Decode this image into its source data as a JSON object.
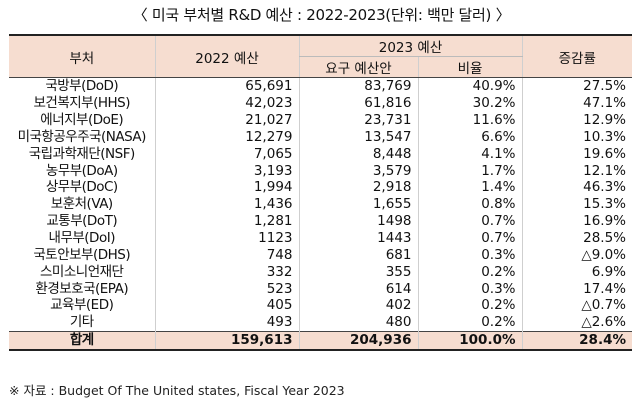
{
  "title": "〈 미국 부처별 R&D 예산 : 2022-2023(단위: 백만 달러) 〉",
  "headers": {
    "dept": "부처",
    "fy2022": "2022 예산",
    "fy2023": "2023 예산",
    "requested": "요구 예산안",
    "ratio": "비율",
    "growth": "증감률"
  },
  "rows": [
    {
      "dept": "국방부(DoD)",
      "fy2022": "65,691",
      "requested": "83,769",
      "ratio": "40.9%",
      "growth": "27.5%"
    },
    {
      "dept": "보건복지부(HHS)",
      "fy2022": "42,023",
      "requested": "61,816",
      "ratio": "30.2%",
      "growth": "47.1%"
    },
    {
      "dept": "에너지부(DoE)",
      "fy2022": "21,027",
      "requested": "23,731",
      "ratio": "11.6%",
      "growth": "12.9%"
    },
    {
      "dept": "미국항공우주국(NASA)",
      "fy2022": "12,279",
      "requested": "13,547",
      "ratio": "6.6%",
      "growth": "10.3%"
    },
    {
      "dept": "국립과학재단(NSF)",
      "fy2022": "7,065",
      "requested": "8,448",
      "ratio": "4.1%",
      "growth": "19.6%"
    },
    {
      "dept": "농무부(DoA)",
      "fy2022": "3,193",
      "requested": "3,579",
      "ratio": "1.7%",
      "growth": "12.1%"
    },
    {
      "dept": "상무부(DoC)",
      "fy2022": "1,994",
      "requested": "2,918",
      "ratio": "1.4%",
      "growth": "46.3%"
    },
    {
      "dept": "보훈처(VA)",
      "fy2022": "1,436",
      "requested": "1,655",
      "ratio": "0.8%",
      "growth": "15.3%"
    },
    {
      "dept": "교통부(DoT)",
      "fy2022": "1,281",
      "requested": "1498",
      "ratio": "0.7%",
      "growth": "16.9%"
    },
    {
      "dept": "내무부(DoI)",
      "fy2022": "1123",
      "requested": "1443",
      "ratio": "0.7%",
      "growth": "28.5%"
    },
    {
      "dept": "국토안보부(DHS)",
      "fy2022": "748",
      "requested": "681",
      "ratio": "0.3%",
      "growth": "△9.0%"
    },
    {
      "dept": "스미소니언재단",
      "fy2022": "332",
      "requested": "355",
      "ratio": "0.2%",
      "growth": "6.9%"
    },
    {
      "dept": "환경보호국(EPA)",
      "fy2022": "523",
      "requested": "614",
      "ratio": "0.3%",
      "growth": "17.4%"
    },
    {
      "dept": "교육부(ED)",
      "fy2022": "405",
      "requested": "402",
      "ratio": "0.2%",
      "growth": "△0.7%"
    },
    {
      "dept": "기타",
      "fy2022": "493",
      "requested": "480",
      "ratio": "0.2%",
      "growth": "△2.6%"
    }
  ],
  "total": {
    "dept": "합계",
    "fy2022": "159,613",
    "requested": "204,936",
    "ratio": "100.0%",
    "growth": "28.4%"
  },
  "source": "※ 자료 : Budget Of The United states, Fiscal Year 2023"
}
